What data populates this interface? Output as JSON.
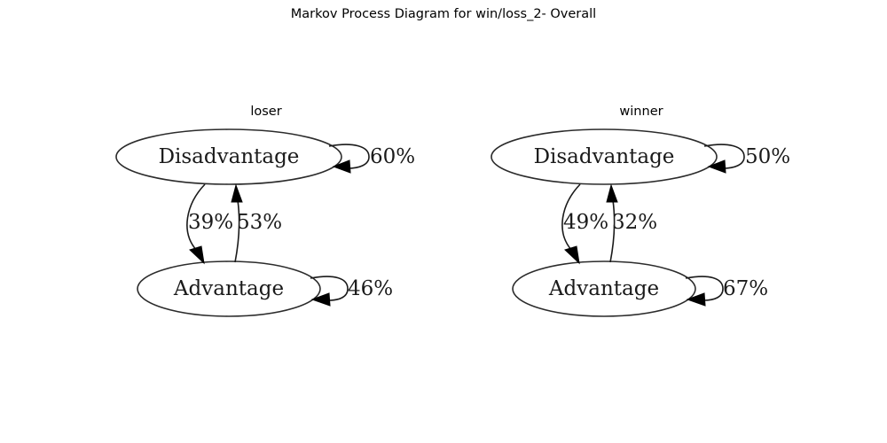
{
  "title": "Markov Process Diagram for win/loss_2- Overall",
  "panels": [
    {
      "title": "loser",
      "nodes": {
        "top": "Disadvantage",
        "bottom": "Advantage"
      },
      "edges": {
        "top_self": "60%",
        "top_to_bottom": "39%",
        "bottom_to_top": "53%",
        "bottom_self": "46%"
      }
    },
    {
      "title": "winner",
      "nodes": {
        "top": "Disadvantage",
        "bottom": "Advantage"
      },
      "edges": {
        "top_self": "50%",
        "top_to_bottom": "49%",
        "bottom_to_top": "32%",
        "bottom_self": "67%"
      }
    }
  ]
}
